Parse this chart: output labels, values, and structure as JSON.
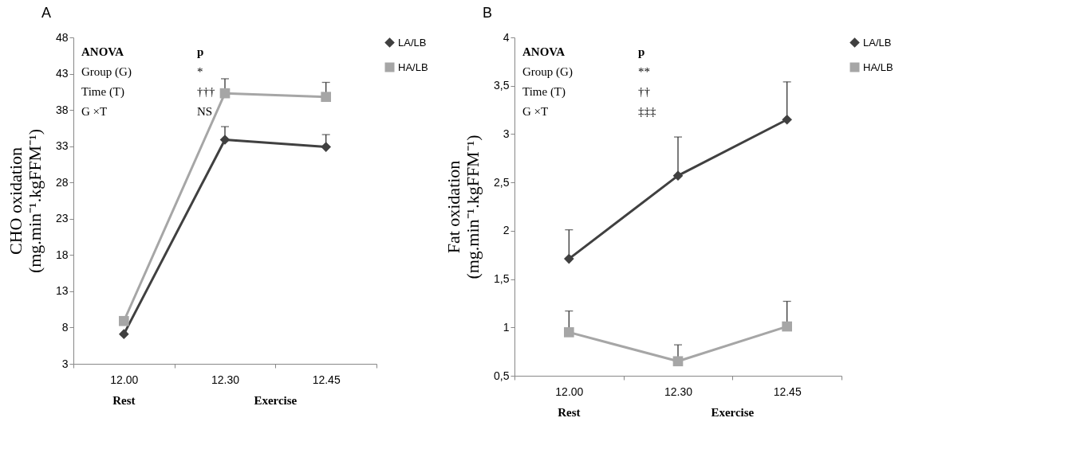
{
  "chart_data": [
    {
      "type": "line",
      "title": "A",
      "ylabel": "CHO oxidation\n(mg.min⁻¹.kgFFM⁻¹)",
      "categories": [
        "12.00",
        "12.30",
        "12.45"
      ],
      "series": [
        {
          "name": "LA/LB",
          "color": "#404040",
          "marker": "diamond",
          "values": [
            7.1,
            33.9,
            32.9
          ],
          "errors": [
            null,
            [
              33.9,
              35.7
            ],
            [
              32.9,
              34.6
            ]
          ]
        },
        {
          "name": "HA/LB",
          "color": "#a6a6a6",
          "marker": "square",
          "values": [
            8.9,
            40.3,
            39.8
          ],
          "errors": [
            null,
            [
              40.3,
              42.3
            ],
            [
              39.8,
              41.8
            ]
          ]
        }
      ],
      "ylim": [
        3,
        48
      ],
      "yticks": [
        3,
        8,
        13,
        18,
        23,
        28,
        33,
        38,
        43,
        48
      ],
      "legend": "top right",
      "line_style": "solid",
      "annotations": [
        "ANOVA",
        "p",
        "Group (G)",
        "*",
        "Time (T)",
        "†††",
        "G ×T",
        "NS",
        "Rest",
        "Exercise"
      ]
    },
    {
      "type": "line",
      "title": "B",
      "ylabel": "Fat oxidation\n(mg.min⁻¹.kgFFM⁻¹)",
      "categories": [
        "12.00",
        "12.30",
        "12.45"
      ],
      "series": [
        {
          "name": "LA/LB",
          "color": "#404040",
          "marker": "diamond",
          "values": [
            1.71,
            2.57,
            3.15
          ],
          "errors": [
            [
              1.71,
              2.01
            ],
            [
              2.57,
              2.97
            ],
            [
              3.15,
              3.54
            ]
          ]
        },
        {
          "name": "HA/LB",
          "color": "#a6a6a6",
          "marker": "square",
          "values": [
            0.95,
            0.65,
            1.01
          ],
          "errors": [
            [
              0.95,
              1.17
            ],
            [
              0.65,
              0.82
            ],
            [
              1.01,
              1.27
            ]
          ]
        }
      ],
      "ylim": [
        0.5,
        4
      ],
      "yticks": [
        {
          "value": 0.5,
          "label": "0,5"
        },
        1,
        {
          "value": 1.5,
          "label": "1,5"
        },
        2,
        {
          "value": 2.5,
          "label": "2,5"
        },
        3,
        {
          "value": 3.5,
          "label": "3,5"
        },
        4
      ],
      "legend": "top right",
      "line_style": "solid",
      "annotations": [
        "ANOVA",
        "p",
        "Group (G)",
        "**",
        "Time (T)",
        "††",
        "G ×T",
        "‡‡‡",
        "Rest",
        "Exercise"
      ]
    }
  ]
}
